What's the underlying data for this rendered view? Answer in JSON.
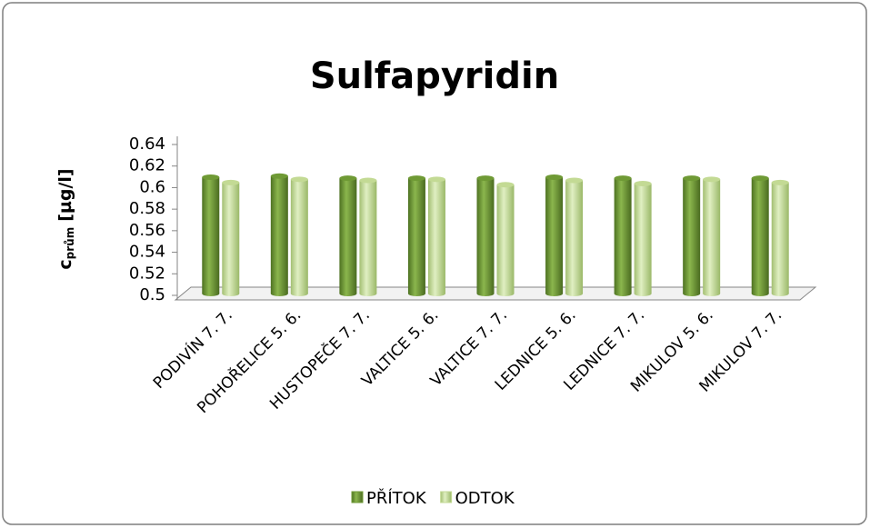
{
  "chart_data": {
    "type": "bar",
    "title": "Sulfapyridin",
    "y_label": {
      "main": "c",
      "subscript": "prům",
      "unit": "[µg/l]"
    },
    "categories": [
      "PODIVÍN 7. 7.",
      "POHOŘELICE 5. 6.",
      "HUSTOPEČE 7. 7.",
      "VALTICE 5. 6.",
      "VALTICE 7. 7.",
      "LEDNICE 5. 6.",
      "LEDNICE 7. 7.",
      "MIKULOV 5. 6.",
      "MIKULOV 7. 7."
    ],
    "series": [
      {
        "name": "PŘÍTOK",
        "color": "#6f9a35",
        "values": [
          0.608,
          0.609,
          0.607,
          0.607,
          0.607,
          0.608,
          0.607,
          0.607,
          0.607
        ]
      },
      {
        "name": "ODTOK",
        "color": "#c3da94",
        "values": [
          0.603,
          0.606,
          0.605,
          0.606,
          0.601,
          0.605,
          0.602,
          0.606,
          0.603
        ]
      }
    ],
    "ylim": [
      0.5,
      0.64
    ],
    "yticks": [
      0.5,
      0.52,
      0.54,
      0.56,
      0.58,
      0.6,
      0.62,
      0.64
    ],
    "legend": "bottom"
  }
}
